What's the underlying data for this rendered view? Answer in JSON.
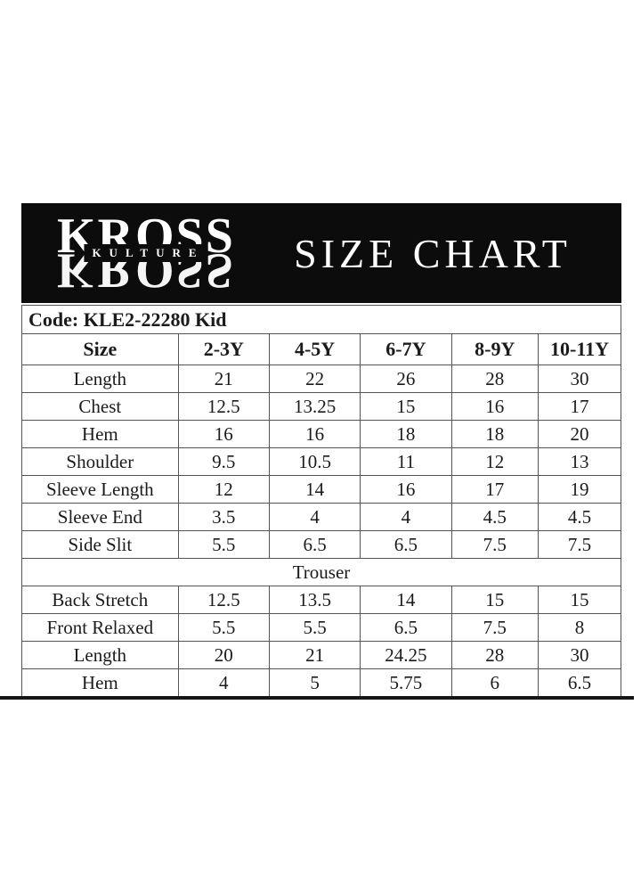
{
  "banner": {
    "logo_primary": "KROSS",
    "logo_secondary": "KULTURE",
    "title": "SIZE CHART"
  },
  "code_label": "Code: KLE2-22280 Kid",
  "table": {
    "columns": [
      "Size",
      "2-3Y",
      "4-5Y",
      "6-7Y",
      "8-9Y",
      "10-11Y"
    ],
    "shirt_rows": [
      {
        "label": "Length",
        "values": [
          "21",
          "22",
          "26",
          "28",
          "30"
        ]
      },
      {
        "label": "Chest",
        "values": [
          "12.5",
          "13.25",
          "15",
          "16",
          "17"
        ]
      },
      {
        "label": "Hem",
        "values": [
          "16",
          "16",
          "18",
          "18",
          "20"
        ]
      },
      {
        "label": "Shoulder",
        "values": [
          "9.5",
          "10.5",
          "11",
          "12",
          "13"
        ]
      },
      {
        "label": "Sleeve Length",
        "values": [
          "12",
          "14",
          "16",
          "17",
          "19"
        ]
      },
      {
        "label": "Sleeve End",
        "values": [
          "3.5",
          "4",
          "4",
          "4.5",
          "4.5"
        ]
      },
      {
        "label": "Side Slit",
        "values": [
          "5.5",
          "6.5",
          "6.5",
          "7.5",
          "7.5"
        ]
      }
    ],
    "section_label": "Trouser",
    "trouser_rows": [
      {
        "label": "Back Stretch",
        "values": [
          "12.5",
          "13.5",
          "14",
          "15",
          "15"
        ]
      },
      {
        "label": "Front Relaxed",
        "values": [
          "5.5",
          "5.5",
          "6.5",
          "7.5",
          "8"
        ]
      },
      {
        "label": "Length",
        "values": [
          "20",
          "21",
          "24.25",
          "28",
          "30"
        ]
      },
      {
        "label": "Hem",
        "values": [
          "4",
          "5",
          "5.75",
          "6",
          "6.5"
        ]
      }
    ]
  },
  "colors": {
    "banner_bg": "#0c0c0c",
    "banner_text": "#ffffff",
    "table_border": "#555555",
    "text": "#1b1b1b",
    "page_bg": "#ffffff"
  }
}
